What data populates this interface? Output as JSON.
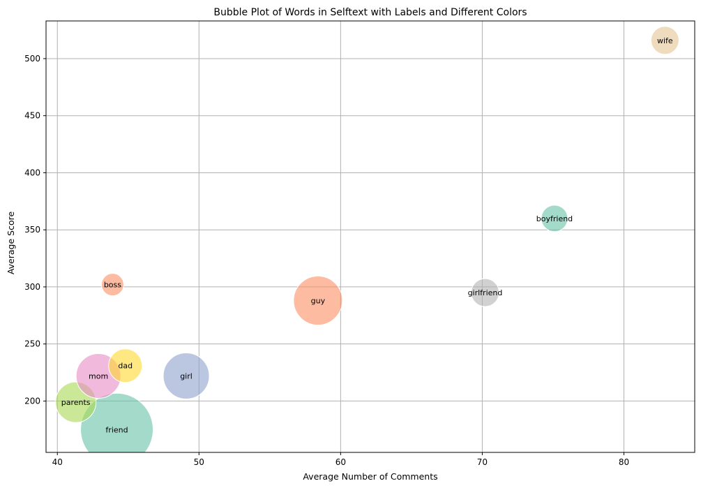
{
  "chart_data": {
    "type": "scatter",
    "title": "Bubble Plot of Words in Selftext with Labels and Different Colors",
    "xlabel": "Average Number of Comments",
    "ylabel": "Average Score",
    "xlim": [
      39.2,
      85.0
    ],
    "ylim": [
      155,
      533
    ],
    "xticks": [
      40,
      50,
      60,
      70,
      80
    ],
    "yticks": [
      200,
      250,
      300,
      350,
      400,
      450,
      500
    ],
    "grid": true,
    "points": [
      {
        "label": "friend",
        "x": 44.2,
        "y": 175,
        "size": 52,
        "color": "#66c2a5"
      },
      {
        "label": "parents",
        "x": 41.3,
        "y": 199,
        "size": 29,
        "color": "#a6d854"
      },
      {
        "label": "mom",
        "x": 42.9,
        "y": 222,
        "size": 32,
        "color": "#e78ac3"
      },
      {
        "label": "dad",
        "x": 44.8,
        "y": 231,
        "size": 24,
        "color": "#ffd92f"
      },
      {
        "label": "girl",
        "x": 49.1,
        "y": 222,
        "size": 33,
        "color": "#8da0cb"
      },
      {
        "label": "boss",
        "x": 43.9,
        "y": 302,
        "size": 16,
        "color": "#fc8d62"
      },
      {
        "label": "guy",
        "x": 58.4,
        "y": 288,
        "size": 35,
        "color": "#fc8d62"
      },
      {
        "label": "girlfriend",
        "x": 70.2,
        "y": 295,
        "size": 20,
        "color": "#b3b3b3"
      },
      {
        "label": "boyfriend",
        "x": 75.1,
        "y": 360,
        "size": 19,
        "color": "#66c2a5"
      },
      {
        "label": "wife",
        "x": 82.9,
        "y": 516,
        "size": 20,
        "color": "#e5c494"
      }
    ]
  }
}
